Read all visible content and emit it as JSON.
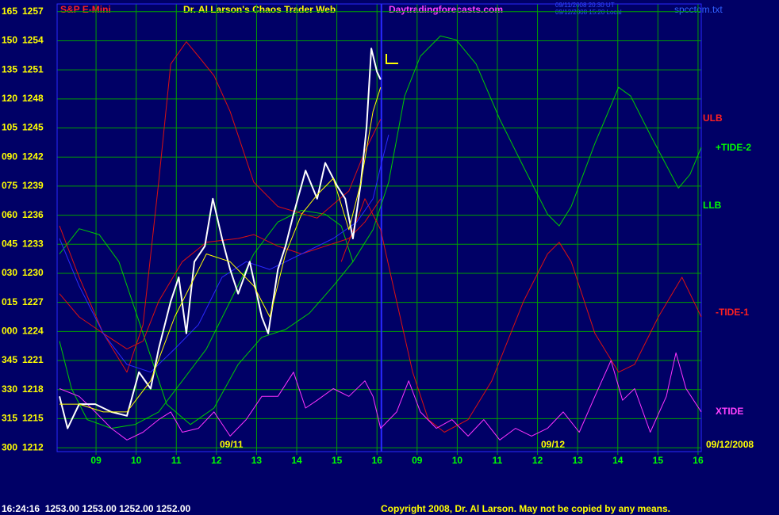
{
  "chart_data": {
    "type": "line",
    "title": "Dr. Al Larson's Chaos Trader Web",
    "instrument": "S&P E-Mini",
    "website": "Daytradingforecasts.com",
    "timestamp_lines": [
      "09/11/2008 20:30 UT",
      "09/12/2008 15:20 Local"
    ],
    "file_name": "spcctom.txt",
    "day_labels": [
      "09/11",
      "09/12"
    ],
    "date_label": "09/12/2008",
    "status_line": "16:24:16  1253.00 1253.00 1252.00 1252.00",
    "copyright": "Copyright 2008, Dr. Al Larson. May not be copied by any means.",
    "band_labels": [
      {
        "text": "ULB",
        "color": "#ff2020"
      },
      {
        "text": "+TIDE-2",
        "color": "#00ff00"
      },
      {
        "text": "LLB",
        "color": "#00ff00"
      },
      {
        "text": "-TIDE-1",
        "color": "#ff2020"
      },
      {
        "text": "XTIDE",
        "color": "#ff40ff"
      }
    ],
    "xlim": [
      -0.97,
      15.08
    ],
    "ylim": [
      1211.6,
      1257.8
    ],
    "xticks": [
      {
        "value": 0,
        "label": "09"
      },
      {
        "value": 1,
        "label": "10"
      },
      {
        "value": 2,
        "label": "11"
      },
      {
        "value": 3,
        "label": "12"
      },
      {
        "value": 4,
        "label": "13"
      },
      {
        "value": 5,
        "label": "14"
      },
      {
        "value": 6,
        "label": "15"
      },
      {
        "value": 7,
        "label": "16"
      },
      {
        "value": 8,
        "label": "09"
      },
      {
        "value": 9,
        "label": "10"
      },
      {
        "value": 10,
        "label": "11"
      },
      {
        "value": 11,
        "label": "12"
      },
      {
        "value": 12,
        "label": "13"
      },
      {
        "value": 13,
        "label": "14"
      },
      {
        "value": 14,
        "label": "15"
      },
      {
        "value": 15,
        "label": "16"
      }
    ],
    "yticks": [
      1212,
      1215,
      1218,
      1221,
      1224,
      1227,
      1230,
      1233,
      1236,
      1239,
      1242,
      1245,
      1248,
      1251,
      1254,
      1257
    ],
    "angle_labels": [
      "300",
      "315",
      "330",
      "345",
      "000",
      "015",
      "030",
      "045",
      "060",
      "075",
      "090",
      "105",
      "120",
      "135",
      "150",
      "165"
    ],
    "now_x": 7.11,
    "grid": true,
    "series": [
      {
        "color": "#00cc00",
        "width": 1,
        "x": [
          -0.91,
          -0.42,
          0.08,
          0.57,
          1.17,
          1.76,
          2.35,
          2.94,
          3.54,
          4.13,
          4.72,
          5.32,
          5.91,
          6.4,
          6.9,
          7.29,
          7.69,
          8.08,
          8.58,
          8.97,
          9.47,
          10.06,
          10.65,
          11.25,
          11.54,
          11.84,
          12.43,
          13.02,
          13.32,
          13.81,
          14.51,
          14.8,
          15.08
        ],
        "values": [
          1232.0,
          1234.6,
          1234.0,
          1231.2,
          1223.8,
          1216.5,
          1214.4,
          1216.1,
          1220.6,
          1223.4,
          1224.2,
          1225.9,
          1228.7,
          1231.2,
          1234.5,
          1239.4,
          1248.3,
          1252.4,
          1254.5,
          1254.1,
          1251.6,
          1245.9,
          1241.0,
          1236.1,
          1234.9,
          1236.9,
          1243.4,
          1249.2,
          1248.3,
          1244.3,
          1238.8,
          1240.2,
          1243.0
        ]
      },
      {
        "color": "#00cc00",
        "width": 1,
        "x": [
          -0.91,
          -0.61,
          -0.22,
          0.38,
          0.97,
          1.56,
          2.15,
          2.75,
          3.34,
          3.93,
          4.53,
          5.12,
          5.71,
          6.11,
          6.4
        ],
        "values": [
          1223.0,
          1218.1,
          1214.9,
          1214.0,
          1214.4,
          1215.7,
          1218.9,
          1222.2,
          1227.1,
          1232.0,
          1235.3,
          1236.5,
          1236.1,
          1234.9,
          1231.2
        ]
      },
      {
        "color": "#dd1010",
        "width": 1,
        "x": [
          -0.91,
          -0.42,
          0.18,
          0.77,
          1.17,
          1.56,
          1.86,
          2.25,
          2.55,
          2.94,
          3.34,
          3.93,
          4.53,
          5.51,
          6.3,
          6.7,
          7.09
        ],
        "values": [
          1234.9,
          1229.6,
          1223.8,
          1219.8,
          1224.7,
          1239.4,
          1251.6,
          1253.9,
          1252.4,
          1250.4,
          1246.7,
          1239.4,
          1236.9,
          1235.7,
          1238.5,
          1242.6,
          1245.9
        ]
      },
      {
        "color": "#dd1010",
        "width": 1,
        "x": [
          6.11,
          6.7,
          7.09,
          7.49,
          7.89,
          8.28,
          8.68,
          9.27,
          9.86,
          10.65,
          11.25,
          11.54,
          11.84,
          12.43,
          13.02,
          13.42,
          14.01,
          14.6,
          15.08
        ],
        "values": [
          1231.2,
          1237.7,
          1234.5,
          1227.1,
          1219.8,
          1214.9,
          1213.6,
          1214.9,
          1218.9,
          1227.1,
          1232.0,
          1233.2,
          1231.2,
          1223.8,
          1219.8,
          1220.6,
          1225.5,
          1229.6,
          1225.5
        ]
      },
      {
        "color": "#dd1010",
        "width": 1,
        "x": [
          -0.91,
          -0.42,
          0.18,
          0.77,
          1.17,
          1.56,
          2.15,
          2.75,
          3.54,
          3.93,
          4.53,
          5.12,
          5.71,
          6.3,
          6.7,
          7.09
        ],
        "values": [
          1227.9,
          1225.5,
          1223.8,
          1222.2,
          1223.0,
          1227.1,
          1231.2,
          1233.2,
          1233.6,
          1234.0,
          1232.8,
          1232.0,
          1232.8,
          1233.6,
          1235.3,
          1237.7
        ]
      },
      {
        "color": "#2a2aff",
        "width": 1,
        "x": [
          -0.91,
          -0.42,
          0.18,
          0.77,
          1.36,
          1.96,
          2.55,
          3.14,
          3.74,
          4.33,
          5.12,
          5.91,
          6.5,
          6.9,
          7.09,
          7.29
        ],
        "values": [
          1233.6,
          1228.7,
          1223.8,
          1220.6,
          1219.8,
          1222.2,
          1224.7,
          1229.6,
          1231.2,
          1230.4,
          1232.0,
          1233.6,
          1235.3,
          1237.7,
          1241.0,
          1244.3
        ]
      },
      {
        "color": "#ff33ff",
        "width": 1,
        "x": [
          -0.91,
          -0.42,
          -0.02,
          0.38,
          0.77,
          1.17,
          1.56,
          1.86,
          2.15,
          2.55,
          2.94,
          3.34,
          3.74,
          4.13,
          4.53,
          4.92,
          5.22,
          5.51,
          5.91,
          6.3,
          6.7,
          6.9,
          7.09,
          7.49,
          7.79,
          8.08,
          8.48,
          8.87,
          9.27,
          9.66,
          10.06,
          10.45,
          10.85,
          11.25,
          11.64,
          12.04,
          12.43,
          12.83,
          13.12,
          13.42,
          13.81,
          14.21,
          14.45,
          14.7,
          15.08
        ],
        "values": [
          1218.1,
          1217.3,
          1215.7,
          1214.0,
          1212.8,
          1213.6,
          1214.9,
          1215.7,
          1213.6,
          1214.0,
          1215.7,
          1213.2,
          1214.9,
          1217.3,
          1217.3,
          1219.8,
          1216.1,
          1216.9,
          1218.1,
          1217.3,
          1218.9,
          1217.3,
          1214.0,
          1215.7,
          1218.9,
          1215.7,
          1214.0,
          1214.9,
          1213.2,
          1214.9,
          1212.8,
          1214.0,
          1213.2,
          1214.0,
          1215.7,
          1213.6,
          1217.3,
          1221.0,
          1216.9,
          1218.1,
          1213.6,
          1217.3,
          1221.8,
          1218.1,
          1215.7
        ]
      },
      {
        "color": "#ffffff",
        "width": 2,
        "x": [
          -0.91,
          -0.71,
          -0.42,
          -0.02,
          0.38,
          0.77,
          1.07,
          1.36,
          1.56,
          1.86,
          2.06,
          2.25,
          2.45,
          2.71,
          2.91,
          3.14,
          3.34,
          3.54,
          3.83,
          4.13,
          4.29,
          4.53,
          4.72,
          4.92,
          5.22,
          5.51,
          5.71,
          6.01,
          6.21,
          6.4,
          6.6,
          6.74,
          6.86,
          7.0,
          7.09
        ],
        "values": [
          1217.3,
          1214.0,
          1216.5,
          1216.5,
          1215.7,
          1215.3,
          1219.8,
          1218.1,
          1222.2,
          1227.1,
          1229.6,
          1223.8,
          1231.2,
          1232.8,
          1237.7,
          1233.6,
          1230.4,
          1227.9,
          1231.2,
          1225.5,
          1223.8,
          1230.4,
          1232.8,
          1236.1,
          1240.6,
          1237.7,
          1241.4,
          1239.0,
          1237.7,
          1233.6,
          1239.4,
          1245.1,
          1253.2,
          1250.8,
          1250.0
        ]
      },
      {
        "color": "#ffff00",
        "width": 1,
        "x": [
          -0.91,
          -0.42,
          0.18,
          0.77,
          1.36,
          1.96,
          2.75,
          3.34,
          3.93,
          4.33,
          4.72,
          5.12,
          5.51,
          5.91,
          6.3,
          6.6,
          6.9,
          7.09
        ],
        "values": [
          1216.5,
          1216.5,
          1215.7,
          1215.7,
          1218.9,
          1225.5,
          1232.0,
          1231.2,
          1228.7,
          1225.5,
          1232.0,
          1236.1,
          1238.1,
          1239.8,
          1234.5,
          1239.4,
          1246.7,
          1249.2
        ]
      }
    ]
  }
}
